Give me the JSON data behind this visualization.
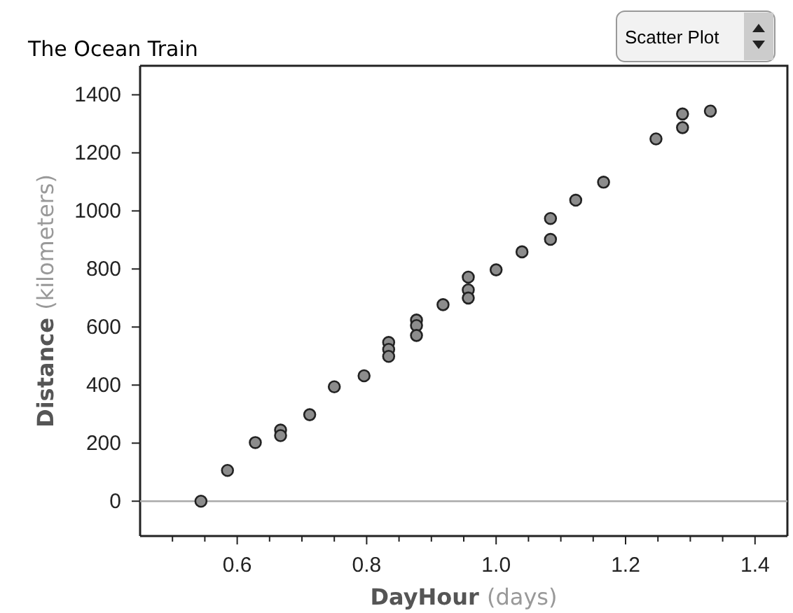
{
  "chart_data": {
    "type": "scatter",
    "title": "The Ocean Train",
    "xlabel": "DayHour (days)",
    "ylabel": "Distance (kilometers)",
    "annotations": [
      "Scatter Plot"
    ],
    "x": [
      0.544,
      0.585,
      0.628,
      0.667,
      0.667,
      0.712,
      0.75,
      0.796,
      0.834,
      0.834,
      0.834,
      0.877,
      0.877,
      0.877,
      0.918,
      0.957,
      0.957,
      0.957,
      1.0,
      1.04,
      1.084,
      1.084,
      1.123,
      1.166,
      1.247,
      1.288,
      1.288,
      1.331
    ],
    "values": [
      0,
      106,
      202,
      245,
      226,
      298,
      394,
      432,
      547,
      523,
      499,
      624,
      605,
      571,
      677,
      772,
      728,
      700,
      797,
      859,
      974,
      902,
      1037,
      1099,
      1248,
      1334,
      1287,
      1344
    ],
    "color": "#8c8c8c",
    "marker": "circle",
    "grid": false,
    "xlim": [
      0.45,
      1.45
    ],
    "ylim": [
      -120,
      1500
    ],
    "xticks": [
      {
        "value": 0.5,
        "label": null
      },
      {
        "value": 0.55,
        "label": null
      },
      0.6,
      {
        "value": 0.65,
        "label": null
      },
      {
        "value": 0.7,
        "label": null
      },
      {
        "value": 0.75,
        "label": null
      },
      0.8,
      {
        "value": 0.85,
        "label": null
      },
      {
        "value": 0.9,
        "label": null
      },
      {
        "value": 0.95,
        "label": null
      },
      {
        "value": 1.0,
        "label": "1.0"
      },
      {
        "value": 1.05,
        "label": null
      },
      {
        "value": 1.1,
        "label": null
      },
      {
        "value": 1.15,
        "label": null
      },
      1.2,
      {
        "value": 1.25,
        "label": null
      },
      {
        "value": 1.3,
        "label": null
      },
      {
        "value": 1.35,
        "label": null
      },
      1.4
    ],
    "yticks": [
      0,
      200,
      400,
      600,
      800,
      1000,
      1200,
      1400
    ],
    "ref_lines": [
      {
        "axis": "y",
        "value": 0,
        "color": "#aaaaaa"
      }
    ]
  }
}
